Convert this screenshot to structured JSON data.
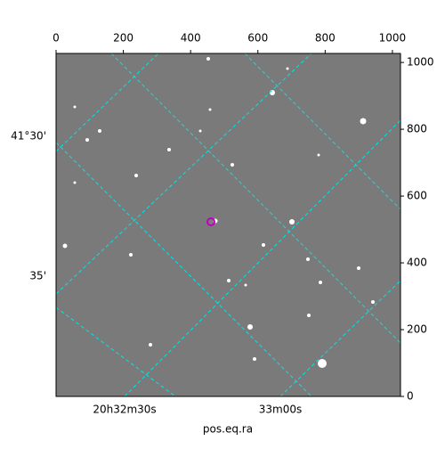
{
  "chart_data": {
    "type": "image",
    "xlabel": "pos.eq.ra",
    "xlim": [
      0,
      1024
    ],
    "xticks": [
      0,
      200,
      400,
      600,
      800,
      1000
    ],
    "ylim": [
      0,
      1027
    ],
    "yticks": [
      0,
      200,
      400,
      600,
      800,
      1000
    ],
    "ra_labels": [
      "20h32m30s",
      "33m00s"
    ],
    "dec_labels": [
      "41°30'",
      "35'"
    ],
    "grid_color": "#00e5e5"
  }
}
